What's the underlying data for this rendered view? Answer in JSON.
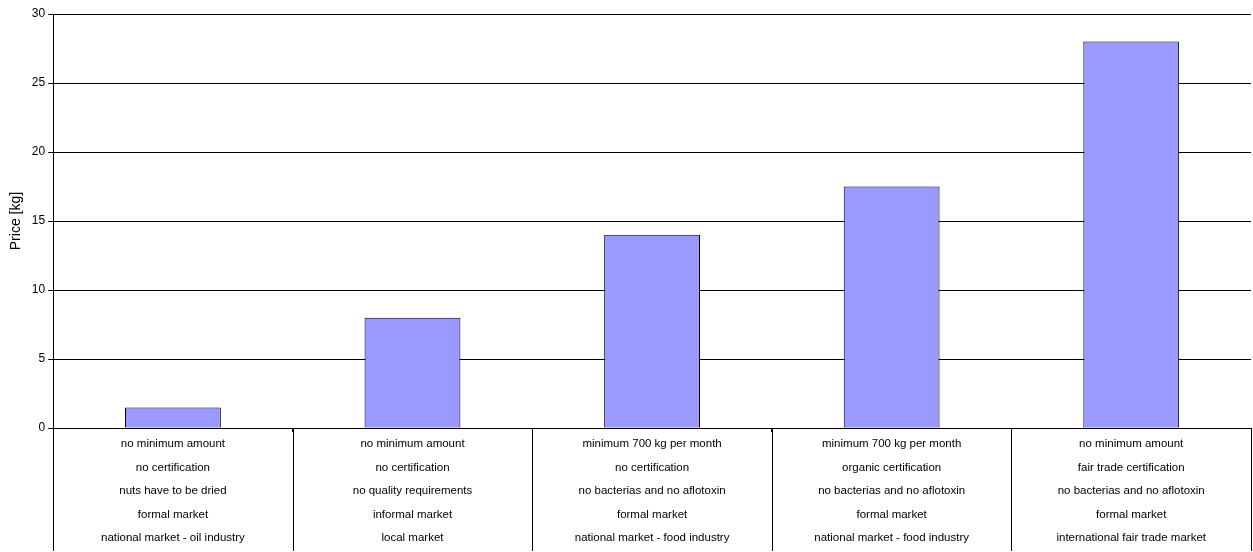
{
  "chart_data": {
    "type": "bar",
    "ylabel": "Price [kg]",
    "categories": [
      "no minimum amount\nno certification\nnuts have to be dried\nformal market\nnational market - oil industry",
      "no minimum amount\nno certification\nno quality requirements\ninformal market\nlocal market",
      "minimum 700 kg per month\nno certification\nno bacterias and no aflotoxin\nformal market\nnational market - food industry",
      "minimum 700 kg per month\norganic certification\nno bacterias and no aflotoxin\nformal market\nnational market - food industry",
      "no minimum amount\nfair trade certification\nno bacterias and no aflotoxin\nformal market\ninternational fair trade market"
    ],
    "values": [
      1.5,
      8,
      14,
      17.5,
      28
    ],
    "color": "#9999ff",
    "ylim": [
      0,
      30
    ],
    "yticks": [
      0,
      5,
      10,
      15,
      20,
      25,
      30
    ],
    "grid": "y",
    "legend": false
  }
}
